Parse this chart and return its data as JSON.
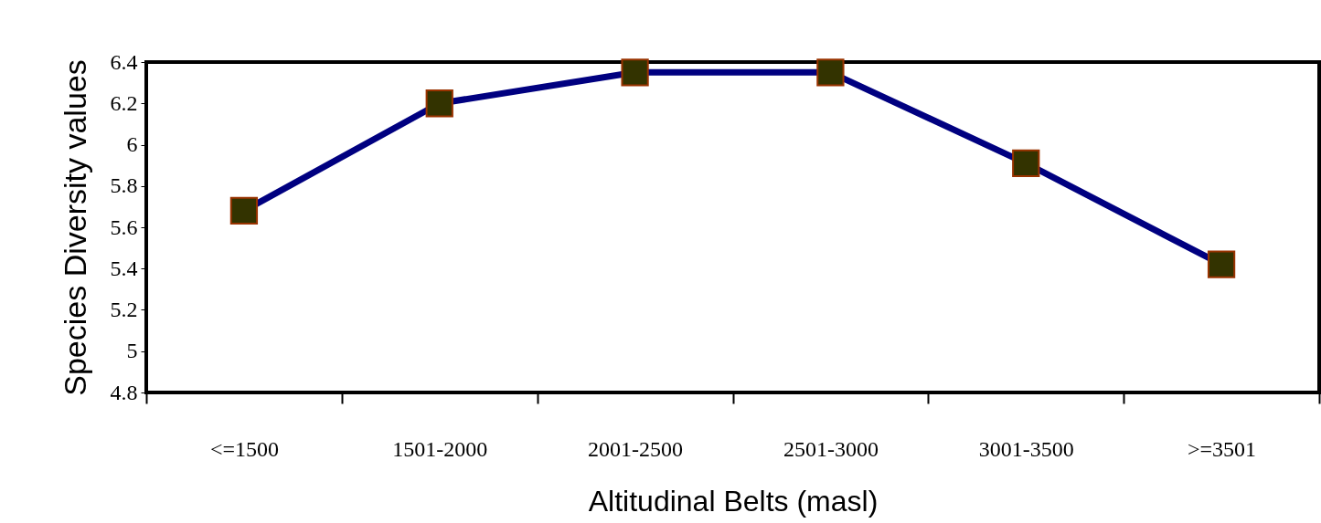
{
  "chart_data": {
    "type": "line",
    "xlabel": "Altitudinal Belts (masl)",
    "ylabel": "Species Diversity values",
    "categories": [
      "<=1500",
      "1501-2000",
      "2001-2500",
      "2501-3000",
      "3001-3500",
      ">=3501"
    ],
    "series": [
      {
        "color": "#000080",
        "values": [
          5.68,
          6.2,
          6.35,
          6.35,
          5.91,
          5.42
        ]
      }
    ],
    "ylim": [
      4.8,
      6.4
    ],
    "yticks": [
      4.8,
      5,
      5.2,
      5.4,
      5.6,
      5.8,
      6,
      6.2,
      6.4
    ],
    "grid": false,
    "legend": false,
    "marker": "square",
    "line_style": "solid"
  }
}
